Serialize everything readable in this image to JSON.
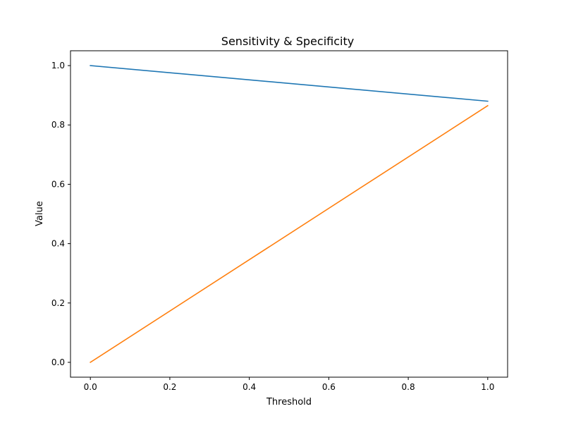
{
  "chart_data": {
    "type": "line",
    "title": "Sensitivity & Specificity",
    "xlabel": "Threshold",
    "ylabel": "Value",
    "xlim": [
      -0.05,
      1.05
    ],
    "ylim": [
      -0.05,
      1.05
    ],
    "x_ticks": [
      "0.0",
      "0.2",
      "0.4",
      "0.6",
      "0.8",
      "1.0"
    ],
    "y_ticks": [
      "0.0",
      "0.2",
      "0.4",
      "0.6",
      "0.8",
      "1.0"
    ],
    "grid": false,
    "series": [
      {
        "x": [
          0.0,
          1.0
        ],
        "y": [
          1.0,
          0.88
        ],
        "color": "#1f77b4"
      },
      {
        "x": [
          0.0,
          1.0
        ],
        "y": [
          0.0,
          0.865
        ],
        "color": "#ff7f0e"
      }
    ]
  }
}
